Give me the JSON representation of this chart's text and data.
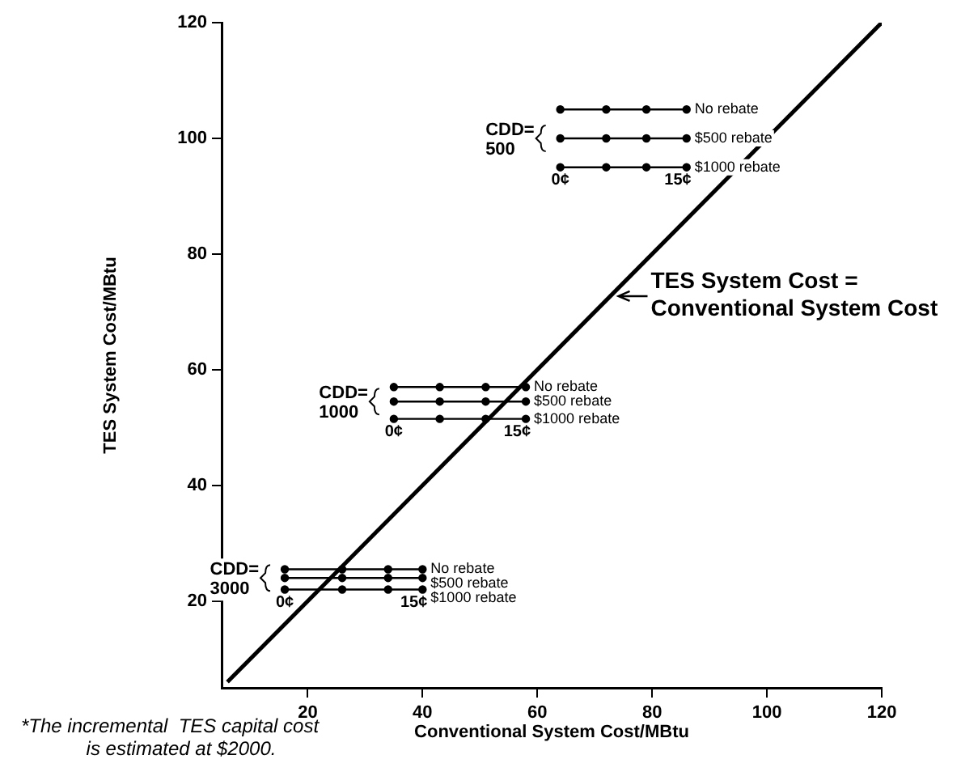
{
  "chart_data": {
    "type": "line",
    "xlabel": "Conventional System Cost/MBtu",
    "ylabel": "TES System Cost/MBtu",
    "xlim": [
      5,
      120
    ],
    "ylim": [
      5,
      120
    ],
    "xticks": [
      20,
      40,
      60,
      80,
      100,
      120
    ],
    "yticks": [
      20,
      40,
      60,
      80,
      100,
      120
    ],
    "grid": false,
    "legend": false,
    "marker": "circle",
    "line_style": "solid",
    "series": [
      {
        "name": "No rebate",
        "color": "#000000",
        "x": [
          64,
          72,
          79,
          86
        ],
        "values": [
          105,
          105,
          105,
          105
        ]
      },
      {
        "name": "$500 rebate",
        "color": "#000000",
        "x": [
          64,
          72,
          79,
          86
        ],
        "values": [
          100,
          100,
          100,
          100
        ]
      },
      {
        "name": "$1000 rebate",
        "color": "#000000",
        "x": [
          64,
          72,
          79,
          86
        ],
        "values": [
          95,
          95,
          95,
          95
        ]
      },
      {
        "name": "No rebate",
        "color": "#000000",
        "x": [
          35,
          43,
          51,
          58
        ],
        "values": [
          57,
          57,
          57,
          57
        ]
      },
      {
        "name": "$500 rebate",
        "color": "#000000",
        "x": [
          35,
          43,
          51,
          58
        ],
        "values": [
          54.5,
          54.5,
          54.5,
          54.5
        ]
      },
      {
        "name": "$1000 rebate",
        "color": "#000000",
        "x": [
          35,
          43,
          51,
          58
        ],
        "values": [
          51.5,
          51.5,
          51.5,
          51.5
        ]
      },
      {
        "name": "No rebate",
        "color": "#000000",
        "x": [
          16,
          26,
          34,
          40
        ],
        "values": [
          25.5,
          25.5,
          25.5,
          25.5
        ]
      },
      {
        "name": "$500 rebate",
        "color": "#000000",
        "x": [
          16,
          26,
          34,
          40
        ],
        "values": [
          24,
          24,
          24,
          24
        ]
      },
      {
        "name": "$1000 rebate",
        "color": "#000000",
        "x": [
          16,
          26,
          34,
          40
        ],
        "values": [
          22,
          22,
          22,
          22
        ]
      },
      {
        "color": "#000000",
        "marker": "none",
        "x": [
          6,
          120
        ],
        "values": [
          6,
          120
        ]
      }
    ],
    "annotations": [
      {
        "text": "CDD=\n500",
        "x": 64,
        "y": 100
      },
      {
        "text": "0¢",
        "x": 64,
        "y": 95
      },
      {
        "text": "15¢",
        "x": 86,
        "y": 95
      },
      {
        "text": "CDD=\n1000",
        "x": 35,
        "y": 54.5
      },
      {
        "text": "0¢",
        "x": 35,
        "y": 51.5
      },
      {
        "text": "15¢",
        "x": 58,
        "y": 51.5
      },
      {
        "text": "CDD=\n3000",
        "x": 16,
        "y": 24
      },
      {
        "text": "0¢",
        "x": 16,
        "y": 22
      },
      {
        "text": "15¢",
        "x": 40,
        "y": 22
      },
      {
        "text": "TES System Cost =\nConventional System Cost",
        "x": 73,
        "y": 73
      },
      "*The incremental  TES capital cost\nis estimated at $2000."
    ]
  }
}
